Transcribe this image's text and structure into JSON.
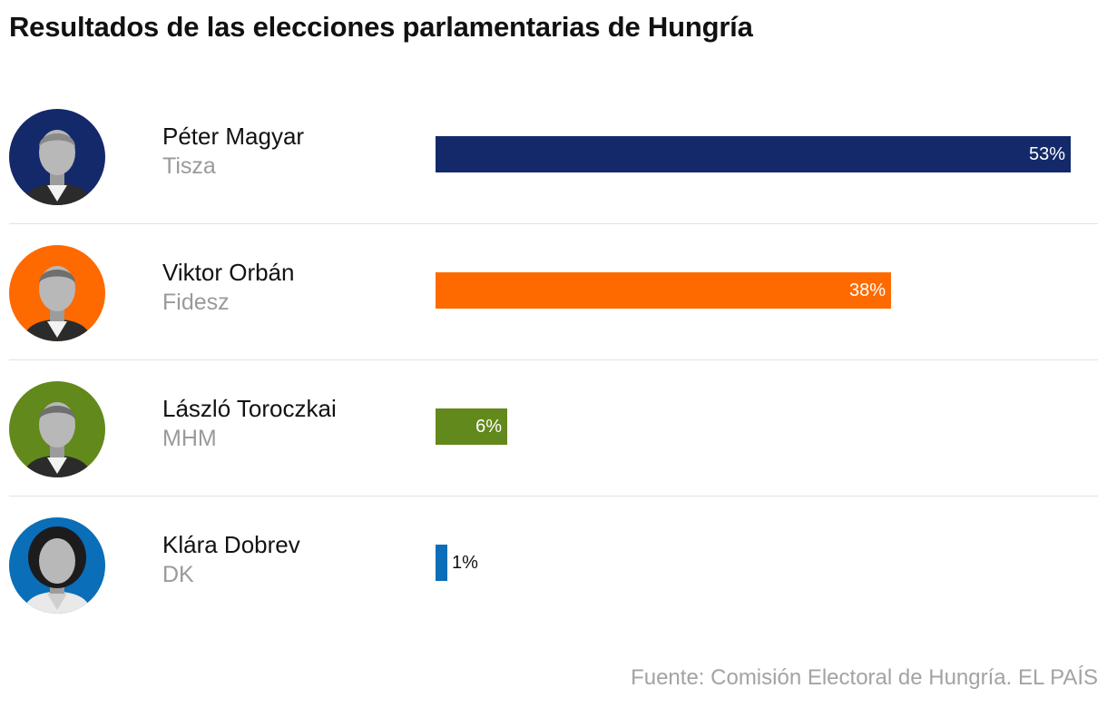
{
  "title": "Resultados de las elecciones parlamentarias de Hungría",
  "source": "Fuente: Comisión Electoral de Hungría. EL PAÍS",
  "chart_data": {
    "type": "bar",
    "orientation": "horizontal",
    "title": "Resultados de las elecciones parlamentarias de Hungría",
    "categories": [
      "Péter Magyar",
      "Viktor Orbán",
      "László Toroczkai",
      "Klára Dobrev"
    ],
    "values": [
      53,
      38,
      6,
      1
    ],
    "value_suffix": "%",
    "xlim": [
      0,
      53
    ],
    "grid": false,
    "legend": "none",
    "candidates": [
      {
        "name": "Péter Magyar",
        "party": "Tisza",
        "value": 53,
        "label": "53%",
        "color": "#13296a",
        "avatar_color": "#13296a"
      },
      {
        "name": "Viktor Orbán",
        "party": "Fidesz",
        "value": 38,
        "label": "38%",
        "color": "#ff6a00",
        "avatar_color": "#ff6a00"
      },
      {
        "name": "László Toroczkai",
        "party": "MHM",
        "value": 6,
        "label": "6%",
        "color": "#62891b",
        "avatar_color": "#62891b"
      },
      {
        "name": "Klára Dobrev",
        "party": "DK",
        "value": 1,
        "label": "1%",
        "color": "#0a6eb8",
        "avatar_color": "#0a6eb8"
      }
    ]
  }
}
